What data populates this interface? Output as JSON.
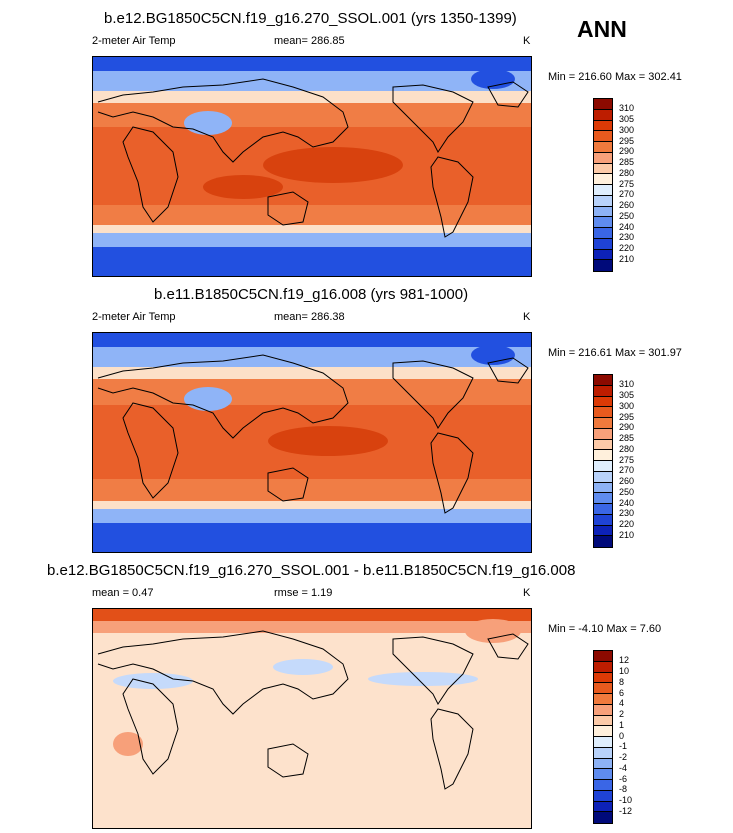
{
  "header": {
    "season": "ANN"
  },
  "panels": [
    {
      "title": "b.e12.BG1850C5CN.f19_g16.270_SSOL.001 (yrs 1350-1399)",
      "left_label": "2-meter Air Temp",
      "center_label": "mean= 286.85",
      "right_label": "K",
      "minmax": "Min = 216.60 Max = 302.41"
    },
    {
      "title": "b.e11.B1850C5CN.f19_g16.008 (yrs 981-1000)",
      "left_label": "2-meter Air Temp",
      "center_label": "mean= 286.38",
      "right_label": "K",
      "minmax": "Min = 216.61 Max = 301.97"
    },
    {
      "title": "b.e12.BG1850C5CN.f19_g16.270_SSOL.001 - b.e11.B1850C5CN.f19_g16.008",
      "left_label": "mean =  0.47",
      "center_label": "rmse =  1.19",
      "right_label": "K",
      "minmax": "Min =  -4.10 Max =   7.60"
    }
  ],
  "colorbars": {
    "absolute": {
      "labels": [
        "310",
        "305",
        "300",
        "295",
        "290",
        "285",
        "280",
        "275",
        "270",
        "260",
        "250",
        "240",
        "230",
        "220",
        "210"
      ],
      "colors": [
        "#8c0a00",
        "#bd1d00",
        "#dc3a06",
        "#e85a1e",
        "#f07a3d",
        "#f7a07a",
        "#fccaa8",
        "#fff0dc",
        "#dfeefd",
        "#b8d2fa",
        "#8db2f5",
        "#5f8cef",
        "#3a66e6",
        "#1f43d6",
        "#0d22b8",
        "#000a7a"
      ]
    },
    "difference": {
      "labels": [
        "12",
        "10",
        "8",
        "6",
        "4",
        "2",
        "1",
        "0",
        "-1",
        "-2",
        "-4",
        "-6",
        "-8",
        "-10",
        "-12"
      ],
      "colors": [
        "#8c0a00",
        "#bd1d00",
        "#dc3a06",
        "#e85a1e",
        "#f07a3d",
        "#f7a07a",
        "#fccaa8",
        "#fff0dc",
        "#dfeefd",
        "#b8d2fa",
        "#8db2f5",
        "#5f8cef",
        "#3a66e6",
        "#1f43d6",
        "#0d22b8",
        "#000a7a"
      ]
    }
  },
  "map_palette": {
    "polar": "#2250e0",
    "subpolar": "#8fb4f7",
    "mid": "#fce0c8",
    "warm": "#f07d45",
    "tropic": "#e9602a",
    "hot": "#d8420e",
    "diff_bg": "#fde2cc",
    "diff_warm": "#f7a07a",
    "diff_hot": "#e25018",
    "diff_cool": "#c5dafb",
    "land": "#000000"
  }
}
